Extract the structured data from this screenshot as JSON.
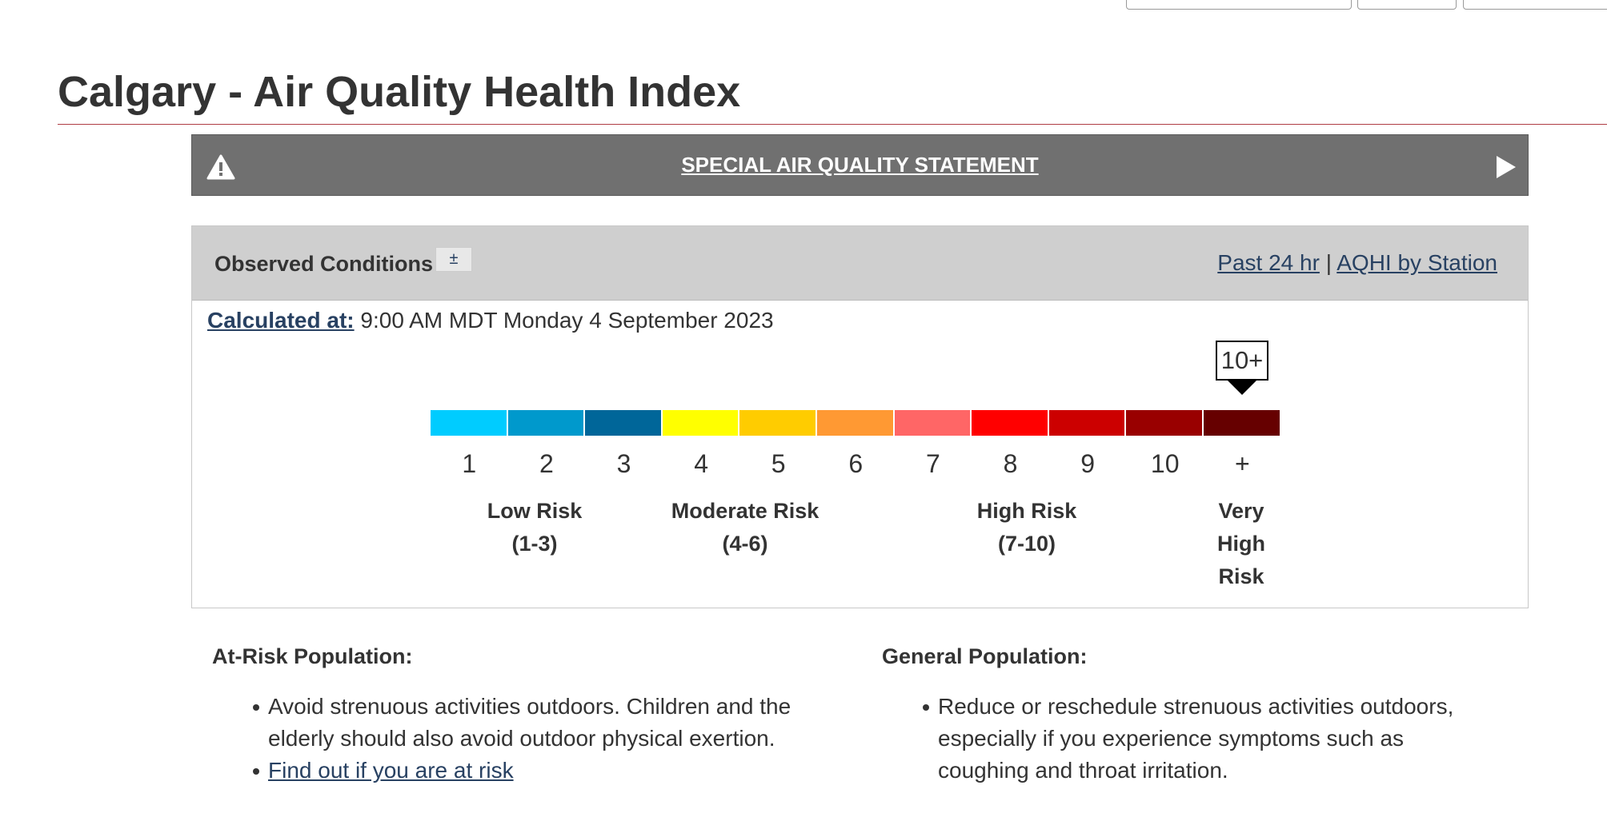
{
  "header": {
    "title": "Calgary - Air Quality Health Index"
  },
  "alert": {
    "text": "SPECIAL AIR QUALITY STATEMENT"
  },
  "observed": {
    "heading": "Observed Conditions",
    "toggle": "±",
    "links": [
      "Past 24 hr",
      "AQHI by Station"
    ],
    "separator": "|",
    "calculated_label": "Calculated at:",
    "calculated_time": "9:00 AM MDT Monday 4 September 2023",
    "current": "10+",
    "scale": [
      {
        "label": "1",
        "color": "#00ccff"
      },
      {
        "label": "2",
        "color": "#0099cc"
      },
      {
        "label": "3",
        "color": "#006699"
      },
      {
        "label": "4",
        "color": "#ffff00"
      },
      {
        "label": "5",
        "color": "#ffcc00"
      },
      {
        "label": "6",
        "color": "#ff9933"
      },
      {
        "label": "7",
        "color": "#ff6666"
      },
      {
        "label": "8",
        "color": "#ff0000"
      },
      {
        "label": "9",
        "color": "#cc0000"
      },
      {
        "label": "10",
        "color": "#990000"
      },
      {
        "label": "+",
        "color": "#660000"
      }
    ],
    "risks": [
      {
        "label": "Low Risk",
        "range": "(1-3)"
      },
      {
        "label": "Moderate Risk",
        "range": "(4-6)"
      },
      {
        "label": "High Risk",
        "range": "(7-10)"
      },
      {
        "label": "Very High Risk"
      }
    ]
  },
  "advice": {
    "at_risk": {
      "heading": "At-Risk Population:",
      "items": [
        "Avoid strenuous activities outdoors. Children and the elderly should also avoid outdoor physical exertion."
      ],
      "link": "Find out if you are at risk"
    },
    "general": {
      "heading": "General Population:",
      "items": [
        "Reduce or reschedule strenuous activities outdoors, especially if you experience symptoms such as coughing and throat irritation."
      ]
    }
  }
}
